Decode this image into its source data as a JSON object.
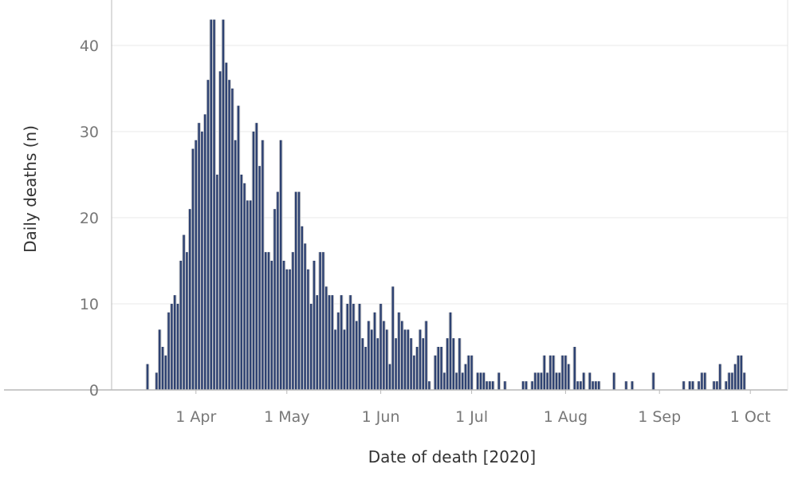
{
  "chart_data": {
    "type": "bar",
    "xlabel": "Date of death [2020]",
    "ylabel": "Daily deaths (n)",
    "ylim": [
      0,
      45
    ],
    "yticks": [
      0,
      10,
      20,
      30,
      40
    ],
    "x_tick_labels": [
      {
        "date": "2020-04-01",
        "label": "1 Apr"
      },
      {
        "date": "2020-05-01",
        "label": "1 May"
      },
      {
        "date": "2020-06-01",
        "label": "1 Jun"
      },
      {
        "date": "2020-07-01",
        "label": "1 Jul"
      },
      {
        "date": "2020-08-01",
        "label": "1 Aug"
      },
      {
        "date": "2020-09-01",
        "label": "1 Sep"
      },
      {
        "date": "2020-10-01",
        "label": "1 Oct"
      }
    ],
    "grid": "horizontal",
    "colors": {
      "primary": "#2e4272",
      "secondary": "#cccccc"
    },
    "series": [
      {
        "values": [
          [
            "2020-03-16",
            3
          ],
          [
            "2020-03-19",
            2
          ],
          [
            "2020-03-20",
            7
          ],
          [
            "2020-03-21",
            5
          ],
          [
            "2020-03-22",
            4
          ],
          [
            "2020-03-23",
            9
          ],
          [
            "2020-03-24",
            10
          ],
          [
            "2020-03-25",
            11
          ],
          [
            "2020-03-26",
            10
          ],
          [
            "2020-03-27",
            15
          ],
          [
            "2020-03-28",
            18
          ],
          [
            "2020-03-29",
            16
          ],
          [
            "2020-03-30",
            21
          ],
          [
            "2020-03-31",
            28
          ],
          [
            "2020-04-01",
            29
          ],
          [
            "2020-04-02",
            31
          ],
          [
            "2020-04-03",
            30
          ],
          [
            "2020-04-04",
            32
          ],
          [
            "2020-04-05",
            36
          ],
          [
            "2020-04-06",
            43
          ],
          [
            "2020-04-07",
            43
          ],
          [
            "2020-04-08",
            25
          ],
          [
            "2020-04-09",
            37
          ],
          [
            "2020-04-10",
            43
          ],
          [
            "2020-04-11",
            38
          ],
          [
            "2020-04-12",
            36
          ],
          [
            "2020-04-13",
            35
          ],
          [
            "2020-04-14",
            29
          ],
          [
            "2020-04-15",
            33
          ],
          [
            "2020-04-16",
            25
          ],
          [
            "2020-04-17",
            24
          ],
          [
            "2020-04-18",
            22
          ],
          [
            "2020-04-19",
            22
          ],
          [
            "2020-04-20",
            30
          ],
          [
            "2020-04-21",
            31
          ],
          [
            "2020-04-22",
            26
          ],
          [
            "2020-04-23",
            29
          ],
          [
            "2020-04-24",
            16
          ],
          [
            "2020-04-25",
            16
          ],
          [
            "2020-04-26",
            15
          ],
          [
            "2020-04-27",
            21
          ],
          [
            "2020-04-28",
            23
          ],
          [
            "2020-04-29",
            29
          ],
          [
            "2020-04-30",
            15
          ],
          [
            "2020-05-01",
            14
          ],
          [
            "2020-05-02",
            14
          ],
          [
            "2020-05-03",
            16
          ],
          [
            "2020-05-04",
            23
          ],
          [
            "2020-05-05",
            23
          ],
          [
            "2020-05-06",
            19
          ],
          [
            "2020-05-07",
            17
          ],
          [
            "2020-05-08",
            14
          ],
          [
            "2020-05-09",
            10
          ],
          [
            "2020-05-10",
            15
          ],
          [
            "2020-05-11",
            11
          ],
          [
            "2020-05-12",
            16
          ],
          [
            "2020-05-13",
            16
          ],
          [
            "2020-05-14",
            12
          ],
          [
            "2020-05-15",
            11
          ],
          [
            "2020-05-16",
            11
          ],
          [
            "2020-05-17",
            7
          ],
          [
            "2020-05-18",
            9
          ],
          [
            "2020-05-19",
            11
          ],
          [
            "2020-05-20",
            7
          ],
          [
            "2020-05-21",
            10
          ],
          [
            "2020-05-22",
            11
          ],
          [
            "2020-05-23",
            10
          ],
          [
            "2020-05-24",
            8
          ],
          [
            "2020-05-25",
            10
          ],
          [
            "2020-05-26",
            6
          ],
          [
            "2020-05-27",
            5
          ],
          [
            "2020-05-28",
            8
          ],
          [
            "2020-05-29",
            7
          ],
          [
            "2020-05-30",
            9
          ],
          [
            "2020-05-31",
            6
          ],
          [
            "2020-06-01",
            10
          ],
          [
            "2020-06-02",
            8
          ],
          [
            "2020-06-03",
            7
          ],
          [
            "2020-06-04",
            3
          ],
          [
            "2020-06-05",
            12
          ],
          [
            "2020-06-06",
            6
          ],
          [
            "2020-06-07",
            9
          ],
          [
            "2020-06-08",
            8
          ],
          [
            "2020-06-09",
            7
          ],
          [
            "2020-06-10",
            7
          ],
          [
            "2020-06-11",
            6
          ],
          [
            "2020-06-12",
            4
          ],
          [
            "2020-06-13",
            5
          ],
          [
            "2020-06-14",
            7
          ],
          [
            "2020-06-15",
            6
          ],
          [
            "2020-06-16",
            8
          ],
          [
            "2020-06-17",
            1
          ],
          [
            "2020-06-19",
            4
          ],
          [
            "2020-06-20",
            5
          ],
          [
            "2020-06-21",
            5
          ],
          [
            "2020-06-22",
            2
          ],
          [
            "2020-06-23",
            6
          ],
          [
            "2020-06-24",
            9
          ],
          [
            "2020-06-25",
            6
          ],
          [
            "2020-06-26",
            2
          ],
          [
            "2020-06-27",
            6
          ],
          [
            "2020-06-28",
            2
          ],
          [
            "2020-06-29",
            3
          ],
          [
            "2020-06-30",
            4
          ],
          [
            "2020-07-01",
            4
          ],
          [
            "2020-07-03",
            2
          ],
          [
            "2020-07-04",
            2
          ],
          [
            "2020-07-05",
            2
          ],
          [
            "2020-07-06",
            1
          ],
          [
            "2020-07-07",
            1
          ],
          [
            "2020-07-08",
            1
          ],
          [
            "2020-07-10",
            2
          ],
          [
            "2020-07-12",
            1
          ],
          [
            "2020-07-18",
            1
          ],
          [
            "2020-07-19",
            1
          ],
          [
            "2020-07-21",
            1
          ],
          [
            "2020-07-22",
            2
          ],
          [
            "2020-07-23",
            2
          ],
          [
            "2020-07-24",
            2
          ],
          [
            "2020-07-25",
            4
          ],
          [
            "2020-07-26",
            2
          ],
          [
            "2020-07-27",
            4
          ],
          [
            "2020-07-28",
            4
          ],
          [
            "2020-07-29",
            2
          ],
          [
            "2020-07-30",
            2
          ],
          [
            "2020-07-31",
            4
          ],
          [
            "2020-08-01",
            4
          ],
          [
            "2020-08-02",
            3
          ],
          [
            "2020-08-04",
            5
          ],
          [
            "2020-08-05",
            1
          ],
          [
            "2020-08-06",
            1
          ],
          [
            "2020-08-07",
            2
          ],
          [
            "2020-08-09",
            2
          ],
          [
            "2020-08-10",
            1
          ],
          [
            "2020-08-11",
            1
          ],
          [
            "2020-08-12",
            1
          ],
          [
            "2020-08-17",
            2
          ],
          [
            "2020-08-21",
            1
          ],
          [
            "2020-08-23",
            1
          ],
          [
            "2020-08-30",
            2
          ],
          [
            "2020-09-09",
            1
          ],
          [
            "2020-09-11",
            1
          ],
          [
            "2020-09-12",
            1
          ],
          [
            "2020-09-14",
            1
          ],
          [
            "2020-09-15",
            2
          ],
          [
            "2020-09-16",
            2
          ],
          [
            "2020-09-19",
            1
          ],
          [
            "2020-09-20",
            1
          ],
          [
            "2020-09-21",
            3
          ],
          [
            "2020-09-23",
            1
          ],
          [
            "2020-09-24",
            2
          ],
          [
            "2020-09-25",
            2
          ],
          [
            "2020-09-26",
            3
          ],
          [
            "2020-09-27",
            4
          ],
          [
            "2020-09-28",
            4
          ],
          [
            "2020-09-29",
            2
          ]
        ]
      }
    ]
  }
}
